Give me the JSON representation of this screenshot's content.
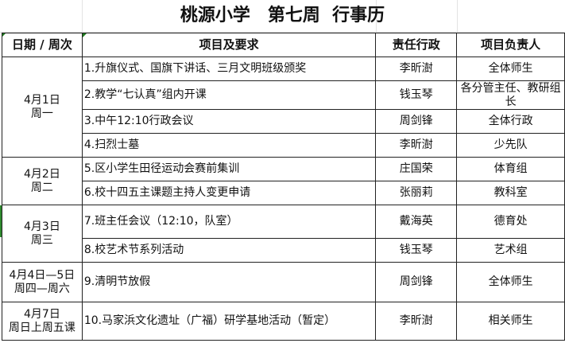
{
  "title": "桃源小学　第七周  行事历",
  "headers": [
    "日期 / 周次",
    "项目及要求",
    "责任行政",
    "项目负责人"
  ],
  "groups": [
    {
      "date": "4月1日",
      "weekday": "周一",
      "items": [
        {
          "task": "1.升旗仪式、国旗下讲话、三月文明班级颁奖",
          "admin": "李昕澍",
          "owner": "全体师生"
        },
        {
          "task": "2.教学“七认真”组内开课",
          "admin": "钱玉琴",
          "owner": "各分管主任、教研组长"
        },
        {
          "task": "3.中午12:10行政会议",
          "admin": "周剑锋",
          "owner": "全体行政"
        },
        {
          "task": "4.扫烈士墓",
          "admin": "李昕澍",
          "owner": "少先队"
        }
      ]
    },
    {
      "date": "4月2日",
      "weekday": "周二",
      "items": [
        {
          "task": "5.区小学生田径运动会赛前集训",
          "admin": "庄国荣",
          "owner": "体育组"
        },
        {
          "task": "6.校十四五主课题主持人变更申请",
          "admin": "张丽莉",
          "owner": "教科室"
        }
      ]
    },
    {
      "date": "4月3日",
      "weekday": "周三",
      "items": [
        {
          "task": "7.班主任会议（12:10，队室）",
          "admin": "戴海英",
          "owner": "德育处"
        },
        {
          "task": "8.校艺术节系列活动",
          "admin": "钱玉琴",
          "owner": "艺术组"
        }
      ]
    },
    {
      "date": "4月4日—5日",
      "weekday": "周四—周六",
      "items": [
        {
          "task": "9.清明节放假",
          "admin": "周剑锋",
          "owner": "全体师生"
        }
      ]
    },
    {
      "date": "4月7日",
      "weekday": "周日上周五课",
      "items": [
        {
          "task": "10.马家浜文化遗址（广福）研学基地活动（暂定）",
          "admin": "李昕澍",
          "owner": "相关师生"
        }
      ]
    }
  ]
}
